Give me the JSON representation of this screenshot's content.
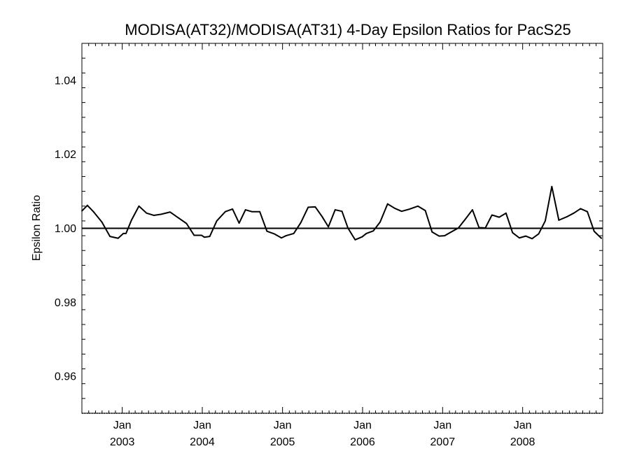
{
  "chart_data": {
    "type": "line",
    "title": "MODISA(AT32)/MODISA(AT31) 4-Day Epsilon Ratios for PacS25",
    "xlabel": "",
    "ylabel": "Epsilon Ratio",
    "xlim": [
      "2002-07-01",
      "2008-12-31"
    ],
    "ylim": [
      0.95,
      1.05
    ],
    "yticks": [
      0.96,
      0.98,
      1.0,
      1.02,
      1.04
    ],
    "ytick_labels": [
      "0.96",
      "0.98",
      "1.00",
      "1.02",
      "1.04"
    ],
    "xticks": [
      {
        "date": "2003-01-01",
        "month": "Jan",
        "year": "2003"
      },
      {
        "date": "2004-01-01",
        "month": "Jan",
        "year": "2004"
      },
      {
        "date": "2005-01-01",
        "month": "Jan",
        "year": "2005"
      },
      {
        "date": "2006-01-01",
        "month": "Jan",
        "year": "2006"
      },
      {
        "date": "2007-01-01",
        "month": "Jan",
        "year": "2007"
      },
      {
        "date": "2008-01-01",
        "month": "Jan",
        "year": "2008"
      }
    ],
    "reference_line": 1.0,
    "grid": false,
    "series": [
      {
        "x": [
          "2002-07-01",
          "2002-07-26",
          "2002-08-24",
          "2002-09-30",
          "2002-11-06",
          "2002-12-13",
          "2003-01-06",
          "2003-01-18",
          "2003-02-12",
          "2003-03-18",
          "2003-04-22",
          "2003-05-25",
          "2003-06-28",
          "2003-08-07",
          "2003-09-17",
          "2003-10-21",
          "2003-11-25",
          "2003-12-29",
          "2004-01-10",
          "2004-02-04",
          "2004-03-07",
          "2004-04-15",
          "2004-05-18",
          "2004-06-17",
          "2004-07-16",
          "2004-08-14",
          "2004-09-19",
          "2004-10-22",
          "2004-11-24",
          "2004-12-27",
          "2005-01-17",
          "2005-02-21",
          "2005-03-25",
          "2005-04-28",
          "2005-05-30",
          "2005-06-30",
          "2005-07-29",
          "2005-08-29",
          "2005-09-29",
          "2005-10-26",
          "2005-11-28",
          "2005-12-30",
          "2006-01-18",
          "2006-02-19",
          "2006-03-22",
          "2006-04-25",
          "2006-05-28",
          "2006-06-28",
          "2006-08-04",
          "2006-09-10",
          "2006-10-14",
          "2006-11-14",
          "2006-12-16",
          "2007-01-10",
          "2007-02-09",
          "2007-03-14",
          "2007-04-15",
          "2007-05-17",
          "2007-06-16",
          "2007-07-15",
          "2007-08-14",
          "2007-09-16",
          "2007-10-17",
          "2007-11-16",
          "2007-12-17",
          "2008-01-15",
          "2008-02-13",
          "2008-03-14",
          "2008-04-13",
          "2008-05-13",
          "2008-06-14",
          "2008-07-20",
          "2008-08-21",
          "2008-09-21",
          "2008-10-22",
          "2008-11-22",
          "2008-12-25"
        ],
        "y": [
          1.0047,
          1.0062,
          1.0044,
          1.0017,
          0.9978,
          0.9973,
          0.9986,
          0.9986,
          1.0022,
          1.006,
          1.0041,
          1.0035,
          1.0038,
          1.0044,
          1.0027,
          1.0013,
          0.9981,
          0.9981,
          0.9976,
          0.9978,
          1.002,
          1.0045,
          1.0052,
          1.0014,
          1.005,
          1.0045,
          1.0045,
          0.9992,
          0.9985,
          0.9974,
          0.998,
          0.9986,
          1.0015,
          1.0057,
          1.0058,
          1.0032,
          1.0004,
          1.005,
          1.0046,
          1.0001,
          0.9969,
          0.9977,
          0.9986,
          0.9993,
          1.0017,
          1.0066,
          1.0054,
          1.0046,
          1.0052,
          1.006,
          1.0048,
          0.999,
          0.9979,
          0.998,
          0.999,
          1.0001,
          1.0025,
          1.005,
          1.0002,
          1.0001,
          1.0036,
          1.003,
          1.0041,
          0.9988,
          0.9974,
          0.9979,
          0.9972,
          0.9985,
          1.002,
          1.0113,
          1.0022,
          1.0031,
          1.0041,
          1.0053,
          1.0045,
          0.9992,
          0.9973
        ]
      }
    ]
  }
}
